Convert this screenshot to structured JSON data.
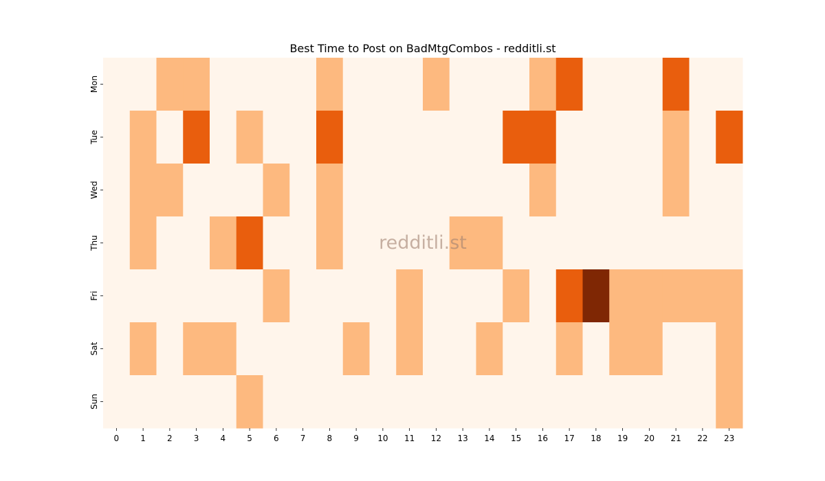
{
  "chart_data": {
    "type": "heatmap",
    "title": "Best Time to Post on BadMtgCombos - redditli.st",
    "watermark": "redditli.st",
    "x_categories": [
      "0",
      "1",
      "2",
      "3",
      "4",
      "5",
      "6",
      "7",
      "8",
      "9",
      "10",
      "11",
      "12",
      "13",
      "14",
      "15",
      "16",
      "17",
      "18",
      "19",
      "20",
      "21",
      "22",
      "23"
    ],
    "y_categories": [
      "Mon",
      "Tue",
      "Wed",
      "Thu",
      "Fri",
      "Sat",
      "Sun"
    ],
    "values": [
      [
        0,
        0,
        1,
        1,
        0,
        0,
        0,
        0,
        1,
        0,
        0,
        0,
        1,
        0,
        0,
        0,
        1,
        2,
        0,
        0,
        0,
        2,
        0,
        0
      ],
      [
        0,
        1,
        0,
        2,
        0,
        1,
        0,
        0,
        2,
        0,
        0,
        0,
        0,
        0,
        0,
        2,
        2,
        0,
        0,
        0,
        0,
        1,
        0,
        2
      ],
      [
        0,
        1,
        1,
        0,
        0,
        0,
        1,
        0,
        1,
        0,
        0,
        0,
        0,
        0,
        0,
        0,
        1,
        0,
        0,
        0,
        0,
        1,
        0,
        0
      ],
      [
        0,
        1,
        0,
        0,
        1,
        2,
        0,
        0,
        1,
        0,
        0,
        0,
        0,
        1,
        1,
        0,
        0,
        0,
        0,
        0,
        0,
        0,
        0,
        0
      ],
      [
        0,
        0,
        0,
        0,
        0,
        0,
        1,
        0,
        0,
        0,
        0,
        1,
        0,
        0,
        0,
        1,
        0,
        2,
        3,
        1,
        1,
        1,
        1,
        1
      ],
      [
        0,
        1,
        0,
        1,
        1,
        0,
        0,
        0,
        0,
        1,
        0,
        1,
        0,
        0,
        1,
        0,
        0,
        1,
        0,
        1,
        1,
        0,
        0,
        1
      ],
      [
        0,
        0,
        0,
        0,
        0,
        1,
        0,
        0,
        0,
        0,
        0,
        0,
        0,
        0,
        0,
        0,
        0,
        0,
        0,
        0,
        0,
        0,
        0,
        1
      ]
    ],
    "colorscale": [
      "#fff5eb",
      "#fdb97f",
      "#e95e0d",
      "#7f2704"
    ],
    "legend": "none"
  }
}
